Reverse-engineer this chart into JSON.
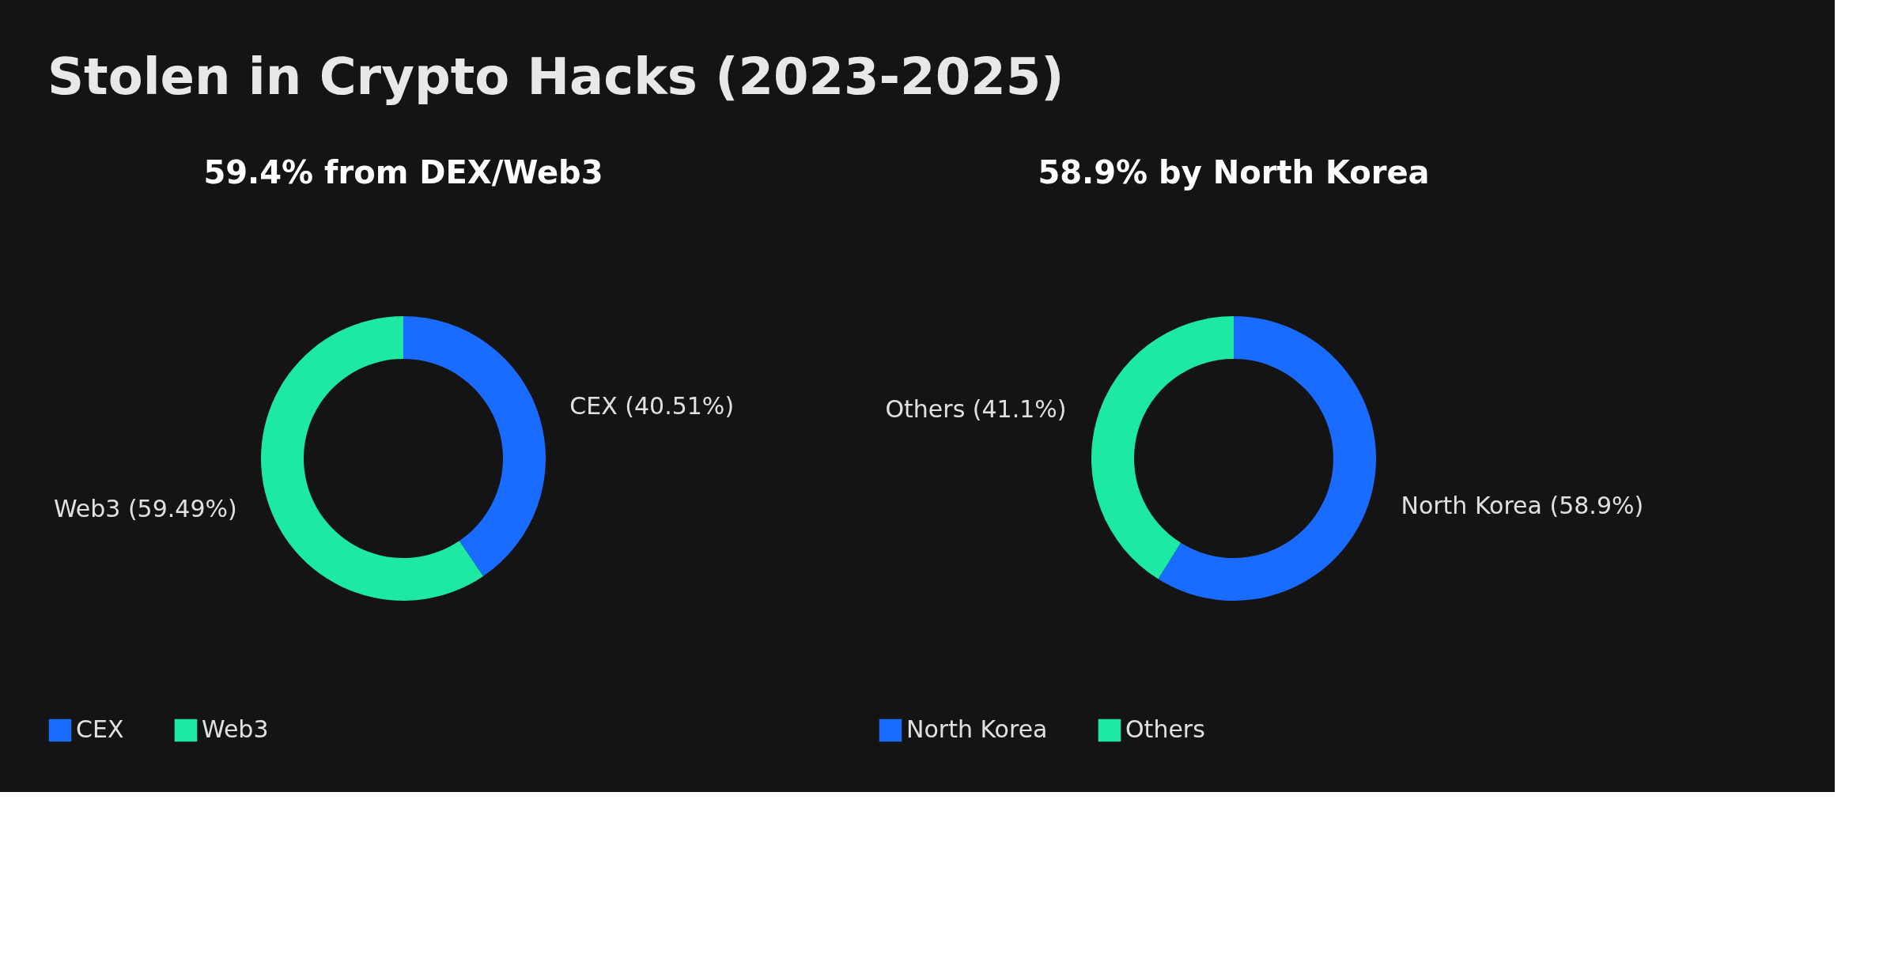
{
  "chart_data": [
    {
      "type": "other",
      "title": "Stolen in Crypto Hacks (2023-2025)"
    },
    {
      "type": "donut",
      "title": "59.4% from DEX/Web3",
      "categories": [
        "CEX",
        "Web3"
      ],
      "values": [
        40.51,
        59.49
      ],
      "colors": [
        "#1a6bff",
        "#1de9a2"
      ],
      "value_labels": [
        "CEX (40.51%)",
        "Web3 (59.49%)"
      ],
      "legend": "bottom"
    },
    {
      "type": "donut",
      "title": "58.9% by North Korea",
      "categories": [
        "North Korea",
        "Others"
      ],
      "values": [
        58.9,
        41.1
      ],
      "colors": [
        "#1a6bff",
        "#1de9a2"
      ],
      "value_labels": [
        "North Korea (58.9%)",
        "Others (41.1%)"
      ],
      "legend": "bottom"
    }
  ]
}
